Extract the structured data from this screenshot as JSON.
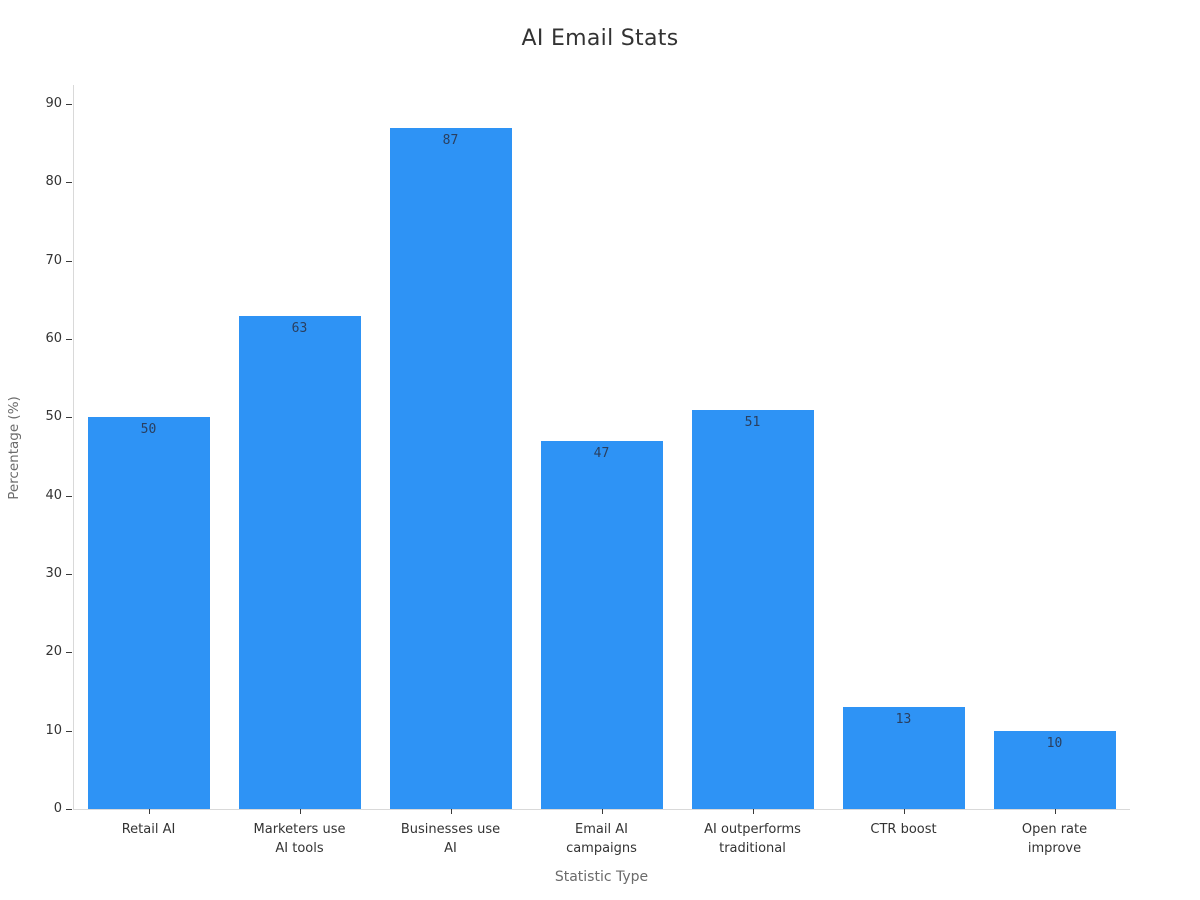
{
  "chart_data": {
    "type": "bar",
    "title": "AI Email Stats",
    "xlabel": "Statistic Type",
    "ylabel": "Percentage (%)",
    "categories": [
      "Retail AI",
      "Marketers use\nAI tools",
      "Businesses use\nAI",
      "Email AI\ncampaigns",
      "AI outperforms\ntraditional",
      "CTR boost",
      "Open rate\nimprove"
    ],
    "values": [
      50,
      63,
      87,
      47,
      51,
      13,
      10
    ],
    "ylim": [
      0,
      90
    ],
    "ytick_step": 10,
    "grid": false,
    "legend": "none",
    "colors": {
      "bar": "#2e93f5",
      "bar_label": "#2a3f5f",
      "title": "#333333",
      "tick_label": "#333333",
      "axis_title": "#6b6b6b",
      "axis_line": "#d9d9d9",
      "tick_mark": "#3a3a3a"
    }
  }
}
